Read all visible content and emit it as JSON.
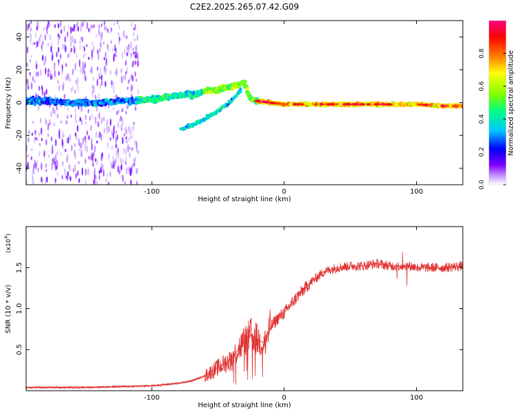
{
  "figure": {
    "title": "C2E2.2025.265.07.42.G09"
  },
  "chart_data": [
    {
      "type": "heatmap",
      "title": "C2E2.2025.265.07.42.G09",
      "xlabel": "Height of straight line (km)",
      "ylabel": "Frequency (Hz)",
      "xlim": [
        -195,
        135
      ],
      "ylim": [
        -50,
        50
      ],
      "xticks": [
        -100,
        0,
        100
      ],
      "yticks": [
        -40,
        -20,
        0,
        20,
        40
      ],
      "colorbar": {
        "label": "Normalized spectral amplitude",
        "range": [
          0,
          1
        ],
        "ticks": [
          "0.0",
          "0.2",
          "0.4",
          "0.6",
          "0.8"
        ],
        "tick_values": [
          0.0,
          0.2,
          0.4,
          0.6,
          0.8
        ],
        "colors": [
          "#ffffff",
          "#c8a0ff",
          "#8000ff",
          "#0000ff",
          "#00c8ff",
          "#00ff80",
          "#80ff00",
          "#ffff00",
          "#ff8000",
          "#ff0000",
          "#ff0080"
        ]
      },
      "main_track": {
        "x": [
          -195,
          -180,
          -160,
          -140,
          -120,
          -100,
          -90,
          -80,
          -70,
          -60,
          -50,
          -40,
          -30,
          -25,
          -20,
          -10,
          0,
          10,
          20,
          40,
          60,
          80,
          100,
          120,
          135
        ],
        "y": [
          1,
          1,
          0,
          0,
          1,
          2,
          3,
          4,
          5,
          7,
          8,
          10,
          12,
          2,
          1,
          0,
          -1,
          -1,
          -1,
          -1,
          -1,
          -1,
          -1,
          -2,
          -2
        ]
      },
      "branch_track": {
        "x": [
          -78,
          -70,
          -60,
          -50,
          -40,
          -32
        ],
        "y": [
          -16,
          -14,
          -10,
          -5,
          1,
          8
        ]
      }
    },
    {
      "type": "line",
      "xlabel": "Height of straight line (km)",
      "ylabel": "SNR (10 * v/v)",
      "scale_label": "(x10",
      "scale_exp": "4",
      "scale_close": ")",
      "xlim": [
        -195,
        135
      ],
      "ylim": [
        0,
        2.0
      ],
      "xticks": [
        -100,
        0,
        100
      ],
      "yticks": [
        0.5,
        1.0,
        1.5
      ],
      "ytick_labels": [
        "0.5",
        "1.0",
        "1.5"
      ],
      "series": [
        {
          "name": "SNR",
          "color": "#e03030",
          "x": [
            -195,
            -150,
            -100,
            -80,
            -70,
            -60,
            -50,
            -40,
            -35,
            -30,
            -25,
            -20,
            -15,
            -10,
            -5,
            0,
            10,
            20,
            30,
            40,
            50,
            60,
            70,
            80,
            90,
            95,
            100,
            110,
            120,
            135
          ],
          "y": [
            0.04,
            0.04,
            0.06,
            0.09,
            0.12,
            0.18,
            0.28,
            0.38,
            0.5,
            0.6,
            0.68,
            0.62,
            0.58,
            0.78,
            0.88,
            0.95,
            1.15,
            1.32,
            1.45,
            1.5,
            1.52,
            1.52,
            1.55,
            1.52,
            1.52,
            1.52,
            1.5,
            1.5,
            1.5,
            1.52
          ]
        }
      ]
    }
  ]
}
